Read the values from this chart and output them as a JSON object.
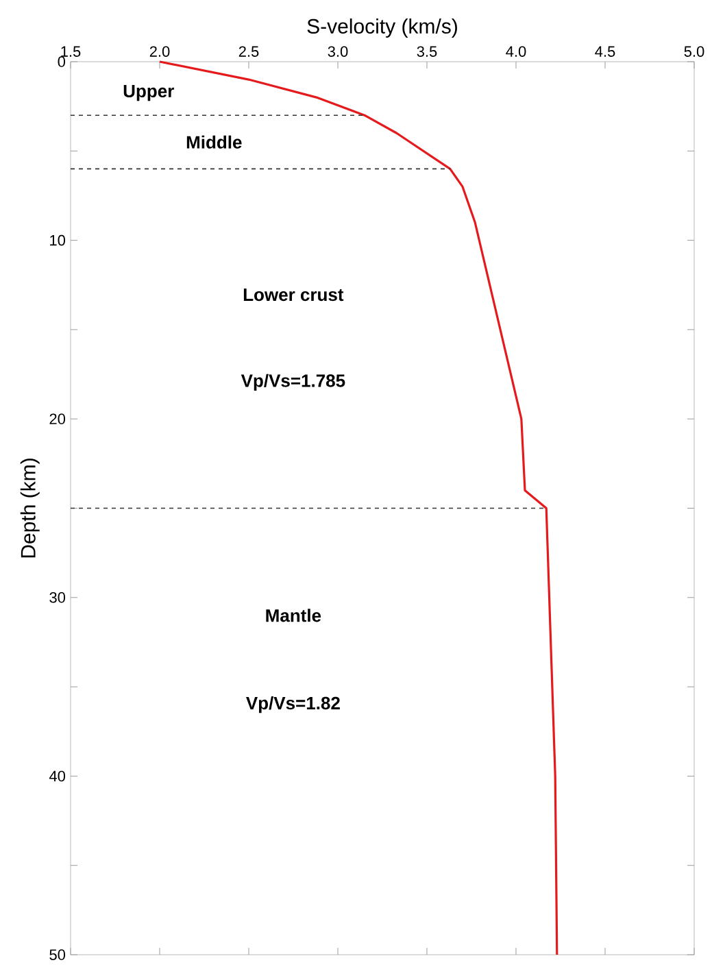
{
  "chart_data": {
    "type": "line",
    "xlabel": "S-velocity (km/s)",
    "ylabel": "Depth (km)",
    "xlim": [
      1.5,
      5.0
    ],
    "ylim": [
      50,
      0
    ],
    "xticks": [
      1.5,
      {
        "value": 2.0,
        "label": "2.0"
      },
      2.5,
      {
        "value": 3.0,
        "label": "3.0"
      },
      3.5,
      {
        "value": 4.0,
        "label": "4.0"
      },
      4.5,
      {
        "value": 5.0,
        "label": "5.0"
      }
    ],
    "yticks": [
      0,
      {
        "value": 5,
        "label": null
      },
      10,
      {
        "value": 15,
        "label": null
      },
      20,
      {
        "value": 25,
        "label": null
      },
      30,
      {
        "value": 35,
        "label": null
      },
      40,
      {
        "value": 45,
        "label": null
      },
      50
    ],
    "series": [
      {
        "color": "#e41a1c",
        "x": [
          2.0,
          2.5,
          2.88,
          3.15,
          3.33,
          3.63,
          3.7,
          3.77,
          4.03,
          4.05,
          4.17,
          4.22,
          4.23
        ],
        "values": [
          0,
          1,
          2,
          3,
          4,
          6,
          7,
          9,
          20,
          24,
          25,
          40,
          50
        ]
      }
    ],
    "line_style": "solid",
    "marker": "none",
    "ref_lines": [
      {
        "axis": "y",
        "value": 3,
        "color": "#333333",
        "line_style": "dashed"
      },
      {
        "axis": "y",
        "value": 6,
        "color": "#333333",
        "line_style": "dashed"
      },
      {
        "axis": "y",
        "value": 25,
        "color": "#333333",
        "line_style": "dashed"
      }
    ],
    "annotations": [
      "Upper",
      "Middle",
      "Lower crust",
      "Vp/Vs=1.785",
      "Mantle",
      "Vp/Vs=1.82"
    ]
  }
}
